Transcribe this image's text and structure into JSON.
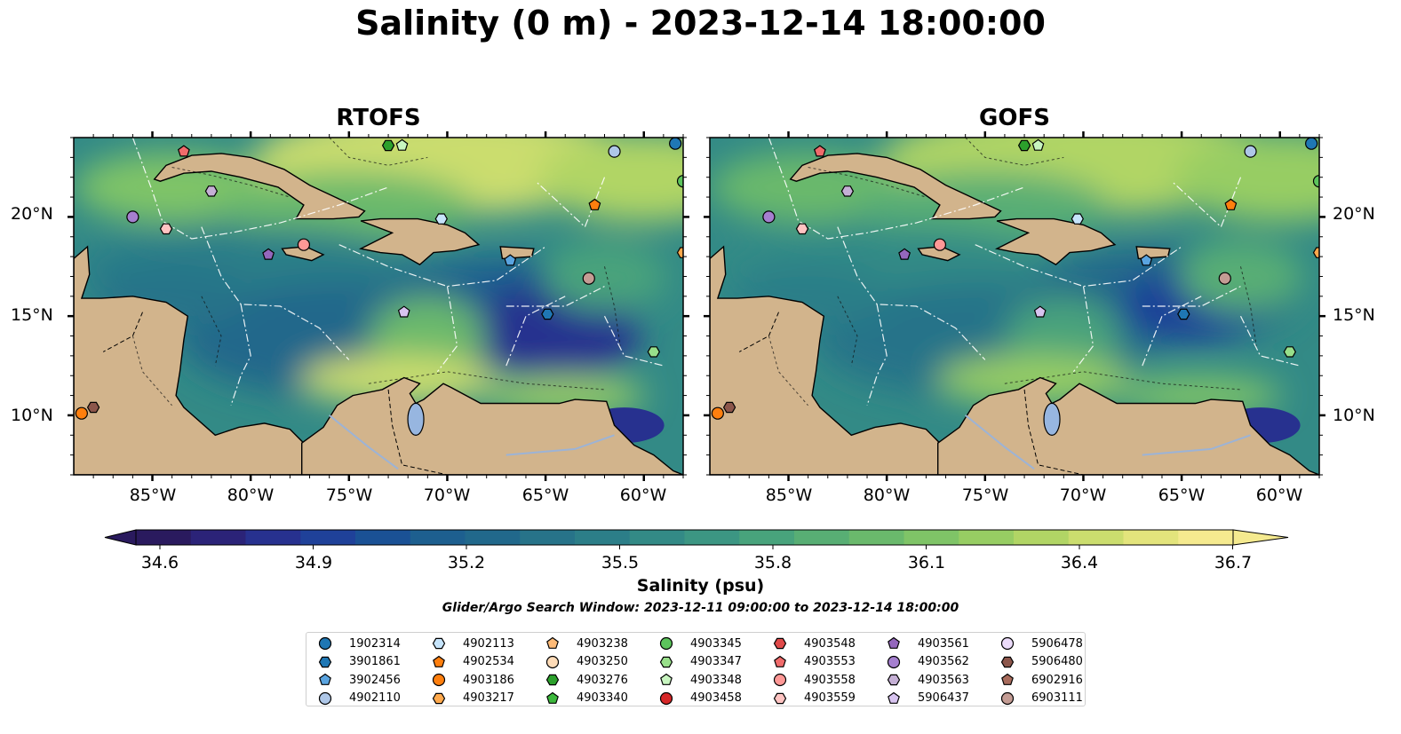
{
  "title": "Salinity (0 m) - 2023-12-14 18:00:00",
  "panels": [
    "RTOFS",
    "GOFS"
  ],
  "lat_labels": [
    "20°N",
    "15°N",
    "10°N"
  ],
  "lon_labels": [
    "85°W",
    "80°W",
    "75°W",
    "70°W",
    "65°W",
    "60°W"
  ],
  "colorbar": {
    "label": "Salinity (psu)",
    "ticks": [
      "34.6",
      "34.9",
      "35.2",
      "35.5",
      "35.8",
      "36.1",
      "36.4",
      "36.7"
    ],
    "colors": [
      "#2a1a5e",
      "#2b2378",
      "#27318f",
      "#1f4199",
      "#1a5195",
      "#1d5f8f",
      "#21688b",
      "#277389",
      "#2c7e88",
      "#338a86",
      "#3c9683",
      "#48a37c",
      "#58ae74",
      "#6ab96c",
      "#7fc467",
      "#97cd63",
      "#b1d565",
      "#cbdd6e",
      "#e3e47c",
      "#f5ea8f"
    ]
  },
  "search_window": "Glider/Argo Search Window: 2023-12-11 09:00:00 to 2023-12-14 18:00:00",
  "chart_data": [
    {
      "type": "heatmap",
      "title": "RTOFS",
      "variable": "Salinity (psu)",
      "xlim": [
        -89,
        -58
      ],
      "ylim": [
        7,
        24
      ],
      "clim": [
        34.6,
        36.7
      ],
      "contours": [
        "-100",
        "-1000",
        "-2000",
        "-100"
      ]
    },
    {
      "type": "heatmap",
      "title": "GOFS",
      "variable": "Salinity (psu)",
      "xlim": [
        -89,
        -58
      ],
      "ylim": [
        7,
        24
      ],
      "clim": [
        34.6,
        36.7
      ],
      "contours": [
        "-100",
        "-1000",
        "-2000"
      ]
    }
  ],
  "legend": {
    "items": [
      {
        "id": "1902314",
        "marker": "circle",
        "color": "#1f77b4"
      },
      {
        "id": "3901861",
        "marker": "hexagon",
        "color": "#1f77b4"
      },
      {
        "id": "3902456",
        "marker": "pentagon",
        "color": "#5aa4e0"
      },
      {
        "id": "4902110",
        "marker": "circle",
        "color": "#aec7e8"
      },
      {
        "id": "4902113",
        "marker": "hexagon",
        "color": "#c6e4fb"
      },
      {
        "id": "4902534",
        "marker": "pentagon",
        "color": "#ff7f0e"
      },
      {
        "id": "4903186",
        "marker": "circle",
        "color": "#ff7f0e"
      },
      {
        "id": "4903217",
        "marker": "hexagon",
        "color": "#ffa94d"
      },
      {
        "id": "4903238",
        "marker": "pentagon",
        "color": "#ffbb78"
      },
      {
        "id": "4903250",
        "marker": "circle",
        "color": "#ffdcb8"
      },
      {
        "id": "4903276",
        "marker": "hexagon",
        "color": "#2ca02c"
      },
      {
        "id": "4903340",
        "marker": "pentagon",
        "color": "#3cb83c"
      },
      {
        "id": "4903345",
        "marker": "circle",
        "color": "#5cc45c"
      },
      {
        "id": "4903347",
        "marker": "hexagon",
        "color": "#98df8a"
      },
      {
        "id": "4903348",
        "marker": "pentagon",
        "color": "#c8f5c0"
      },
      {
        "id": "4903458",
        "marker": "circle",
        "color": "#d62728"
      },
      {
        "id": "4903548",
        "marker": "hexagon",
        "color": "#e04a4a"
      },
      {
        "id": "4903553",
        "marker": "pentagon",
        "color": "#f06b6b"
      },
      {
        "id": "4903558",
        "marker": "circle",
        "color": "#ff9896"
      },
      {
        "id": "4903559",
        "marker": "hexagon",
        "color": "#ffc4c2"
      },
      {
        "id": "4903561",
        "marker": "pentagon",
        "color": "#9467bd"
      },
      {
        "id": "4903562",
        "marker": "circle",
        "color": "#a57fcf"
      },
      {
        "id": "4903563",
        "marker": "hexagon",
        "color": "#c5b0d5"
      },
      {
        "id": "5906437",
        "marker": "pentagon",
        "color": "#d8c4f0"
      },
      {
        "id": "5906478",
        "marker": "circle",
        "color": "#ecdcfa"
      },
      {
        "id": "5906480",
        "marker": "hexagon",
        "color": "#8c564b"
      },
      {
        "id": "6902916",
        "marker": "pentagon",
        "color": "#a86b5c"
      },
      {
        "id": "6903111",
        "marker": "circle",
        "color": "#c49c94"
      }
    ]
  }
}
